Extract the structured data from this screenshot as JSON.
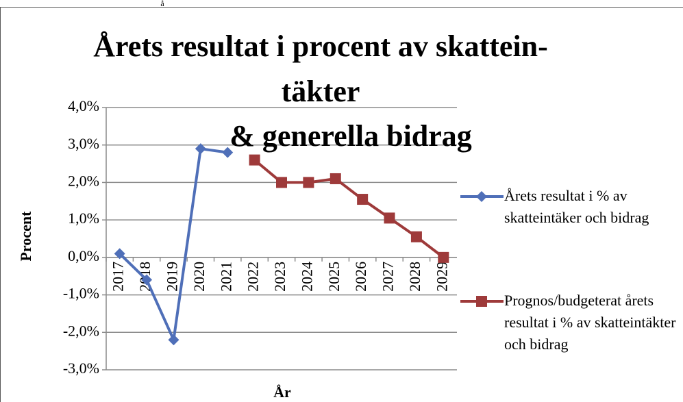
{
  "chart_data": {
    "type": "line",
    "title": [
      "Årets resultat i procent av skattein-",
      "täkter",
      "& generella bidrag"
    ],
    "annotations": [
      "å"
    ],
    "x_label": "År",
    "y_label": "Procent",
    "categories": [
      "2017",
      "2018",
      "2019",
      "2020",
      "2021",
      "2022",
      "2023",
      "2024",
      "2025",
      "2026",
      "2027",
      "2028",
      "2029"
    ],
    "series": [
      {
        "name": "Årets resultat i % av skatteintäker och bidrag",
        "color": "#4f6fb8",
        "marker": "diamond",
        "values": [
          0.1,
          -0.6,
          -2.2,
          2.9,
          2.8,
          null,
          null,
          null,
          null,
          null,
          null,
          null,
          null
        ]
      },
      {
        "name": "Prognos/budgeterat årets resultat i % av skatteintäkter och bidrag",
        "color": "#9e3a3a",
        "marker": "square",
        "values": [
          null,
          null,
          null,
          null,
          null,
          2.6,
          2.0,
          2.0,
          2.1,
          1.55,
          1.05,
          0.55,
          0.0
        ]
      }
    ],
    "ylim": [
      -3,
      4
    ],
    "yticks": [
      {
        "value": -3,
        "label": "-3,0%"
      },
      {
        "value": -2,
        "label": "-2,0%"
      },
      {
        "value": -1,
        "label": "-1,0%"
      },
      {
        "value": 0,
        "label": "0,0%"
      },
      {
        "value": 1,
        "label": "1,0%"
      },
      {
        "value": 2,
        "label": "2,0%"
      },
      {
        "value": 3,
        "label": "3,0%"
      },
      {
        "value": 4,
        "label": "4,0%"
      }
    ],
    "grid": true,
    "legend": "right"
  }
}
